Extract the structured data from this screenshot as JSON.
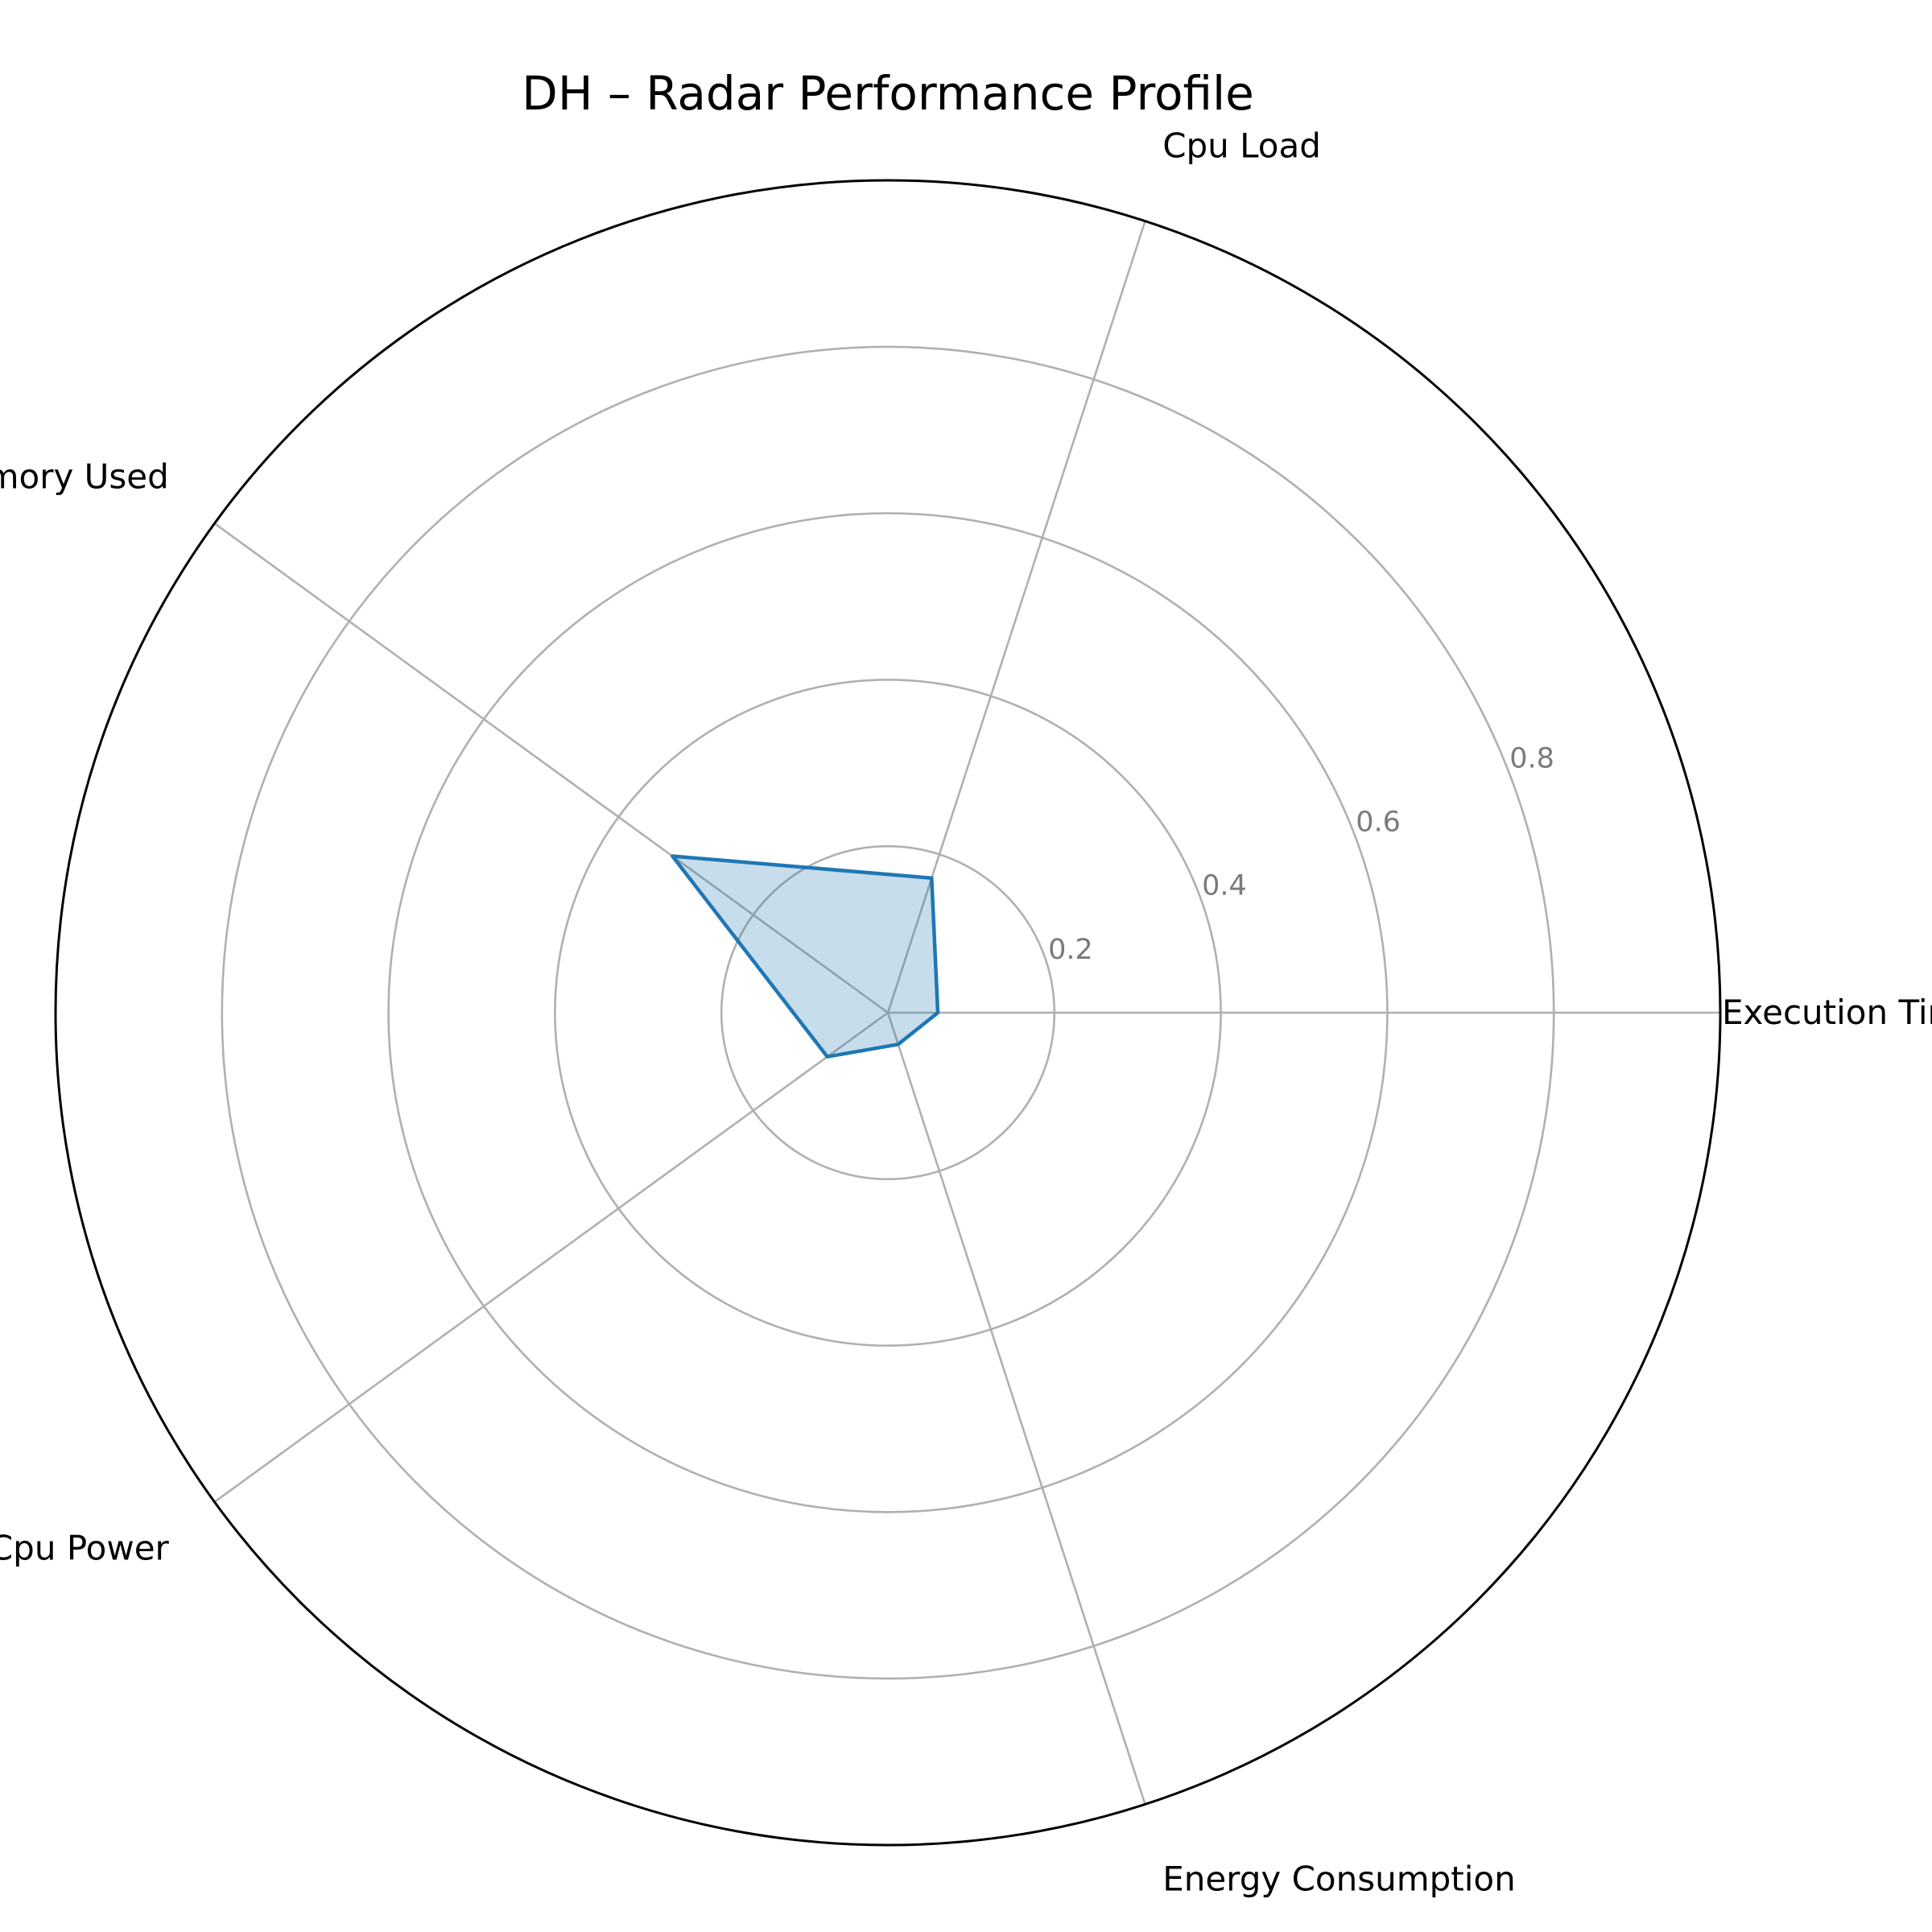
{
  "chart_data": {
    "type": "radar",
    "title": "DH – Radar Performance Profile",
    "axes": [
      "Execution Time",
      "Cpu Load",
      "Memory Used",
      "Cpu Power",
      "Energy Consumption"
    ],
    "series": [
      {
        "values": [
          0.06,
          0.17,
          0.32,
          0.09,
          0.04
        ]
      }
    ],
    "rlim": [
      0,
      1.0
    ],
    "radial_ticks": [
      0.2,
      0.4,
      0.6,
      0.8
    ],
    "radial_tick_labels": [
      "0.2",
      "0.4",
      "0.6",
      "0.8"
    ],
    "grid": true,
    "legend": "none",
    "colors": {
      "series_line": "#1f77b4",
      "series_fill": "#1f77b4",
      "grid": "#b0b0b0",
      "frame": "#000000",
      "tick_label": "#7a7a7a"
    }
  }
}
